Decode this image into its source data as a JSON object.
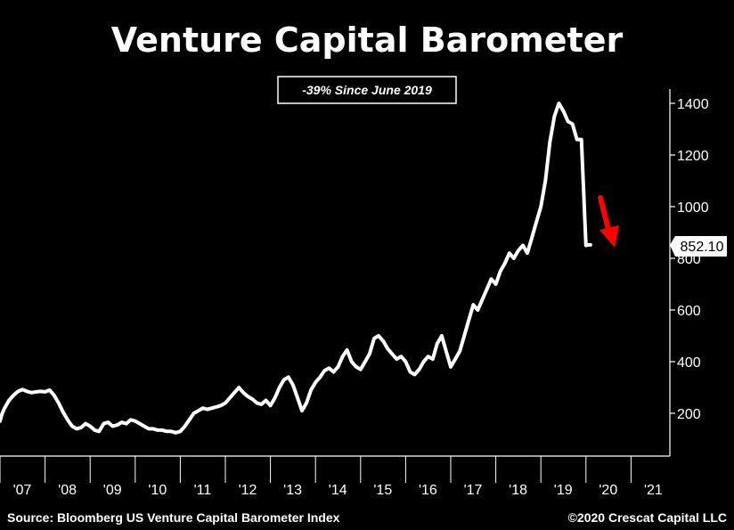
{
  "chart_data": {
    "type": "line",
    "title": "Venture Capital Barometer",
    "annotation": "-39% Since June 2019",
    "source": "Source: Bloomberg US Venture Capital Barometer Index",
    "copyright": "©2020 Crescat Capital LLC",
    "xlabel": "",
    "ylabel": "",
    "x_ticks": [
      "'07",
      "'08",
      "'09",
      "'10",
      "'11",
      "'12",
      "'13",
      "'14",
      "'15",
      "'16",
      "'17",
      "'18",
      "'19",
      "'20",
      "'21"
    ],
    "y_ticks": [
      200,
      400,
      600,
      800,
      1000,
      1200,
      1400
    ],
    "ylim": [
      50,
      1470
    ],
    "xlim": [
      2007.0,
      2021.6
    ],
    "last_value_label": "852.10",
    "last_value": 852.1,
    "legend": "none",
    "grid": false,
    "colors": {
      "background": "#000000",
      "line": "#ffffff",
      "arrow": "#ff0000",
      "text": "#ffffff"
    },
    "series": [
      {
        "x": [
          2007.0,
          2007.05,
          2007.1,
          2007.2,
          2007.3,
          2007.4,
          2007.5,
          2007.6,
          2007.7,
          2007.8,
          2007.9,
          2008.0,
          2008.1,
          2008.2,
          2008.3,
          2008.4,
          2008.5,
          2008.6,
          2008.7,
          2008.8,
          2008.9,
          2009.0,
          2009.1,
          2009.2,
          2009.3,
          2009.4,
          2009.5,
          2009.6,
          2009.7,
          2009.8,
          2009.9,
          2010.0,
          2010.1,
          2010.2,
          2010.3,
          2010.4,
          2010.5,
          2010.6,
          2010.7,
          2010.8,
          2010.9,
          2011.0,
          2011.1,
          2011.2,
          2011.3,
          2011.4,
          2011.5,
          2011.6,
          2011.7,
          2011.8,
          2011.9,
          2012.0,
          2012.1,
          2012.2,
          2012.3,
          2012.4,
          2012.5,
          2012.6,
          2012.7,
          2012.8,
          2012.9,
          2013.0,
          2013.1,
          2013.2,
          2013.3,
          2013.4,
          2013.5,
          2013.6,
          2013.7,
          2013.8,
          2013.9,
          2014.0,
          2014.1,
          2014.2,
          2014.3,
          2014.4,
          2014.5,
          2014.6,
          2014.7,
          2014.8,
          2014.9,
          2015.0,
          2015.1,
          2015.2,
          2015.3,
          2015.4,
          2015.5,
          2015.6,
          2015.7,
          2015.8,
          2015.9,
          2016.0,
          2016.1,
          2016.2,
          2016.3,
          2016.4,
          2016.5,
          2016.6,
          2016.7,
          2016.8,
          2016.9,
          2017.0,
          2017.1,
          2017.2,
          2017.3,
          2017.4,
          2017.5,
          2017.6,
          2017.7,
          2017.8,
          2017.9,
          2018.0,
          2018.1,
          2018.2,
          2018.3,
          2018.4,
          2018.5,
          2018.6,
          2018.7,
          2018.8,
          2018.9,
          2019.0,
          2019.1,
          2019.2,
          2019.3,
          2019.4,
          2019.5,
          2019.6,
          2019.7,
          2019.8,
          2019.9,
          2020.0,
          2020.05,
          2020.1
        ],
        "values": [
          170,
          200,
          220,
          250,
          270,
          285,
          292,
          285,
          280,
          283,
          285,
          283,
          290,
          270,
          240,
          205,
          175,
          150,
          140,
          145,
          160,
          150,
          135,
          130,
          160,
          165,
          150,
          155,
          165,
          160,
          175,
          170,
          160,
          150,
          140,
          140,
          135,
          135,
          130,
          130,
          125,
          130,
          150,
          175,
          200,
          210,
          220,
          215,
          220,
          225,
          230,
          240,
          260,
          280,
          300,
          280,
          265,
          255,
          240,
          235,
          250,
          230,
          260,
          300,
          330,
          340,
          310,
          260,
          210,
          240,
          290,
          320,
          340,
          365,
          375,
          360,
          380,
          420,
          445,
          400,
          380,
          370,
          400,
          430,
          490,
          500,
          480,
          450,
          430,
          410,
          420,
          400,
          360,
          350,
          370,
          400,
          420,
          410,
          470,
          500,
          440,
          380,
          410,
          440,
          500,
          560,
          620,
          600,
          640,
          680,
          720,
          700,
          750,
          780,
          820,
          800,
          830,
          850,
          820,
          880,
          940,
          1000,
          1100,
          1250,
          1350,
          1400,
          1370,
          1330,
          1320,
          1260,
          1260,
          850,
          852.1,
          852.1
        ]
      }
    ]
  }
}
